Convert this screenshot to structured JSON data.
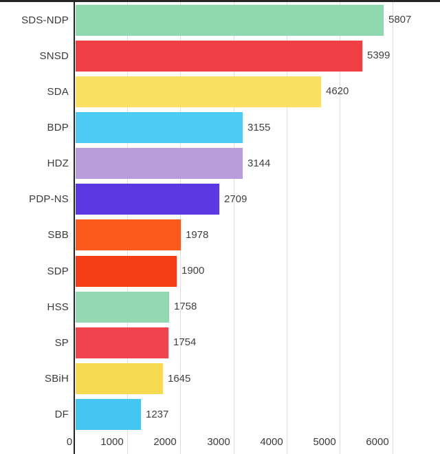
{
  "chart_data": {
    "type": "bar",
    "orientation": "horizontal",
    "title": "",
    "xlabel": "",
    "ylabel": "",
    "categories": [
      "SDS-NDP",
      "SNSD",
      "SDA",
      "BDP",
      "HDZ",
      "PDP-NS",
      "SBB",
      "SDP",
      "HSS",
      "SP",
      "SBiH",
      "DF"
    ],
    "values": [
      5807,
      5399,
      4620,
      3155,
      3144,
      2709,
      1978,
      1900,
      1758,
      1754,
      1645,
      1237
    ],
    "bar_colors": [
      "#8FD9B0",
      "#F03E45",
      "#FAE162",
      "#4ECBF5",
      "#B99CDC",
      "#5A39E3",
      "#FB5A1E",
      "#F33E15",
      "#92D8B2",
      "#EF4450",
      "#F6DA50",
      "#45C5F2"
    ],
    "x_ticks": [
      0,
      1000,
      2000,
      3000,
      4000,
      5000,
      6000
    ],
    "xlim": [
      0,
      6900
    ],
    "grid": true,
    "legend": "none",
    "value_labels_shown": true
  },
  "colors": {
    "background": "#FFFFFF",
    "axis_line": "#212121",
    "gridline": "#DEDEDE",
    "text": "#3B3B3B",
    "top_strip": "#262626"
  }
}
